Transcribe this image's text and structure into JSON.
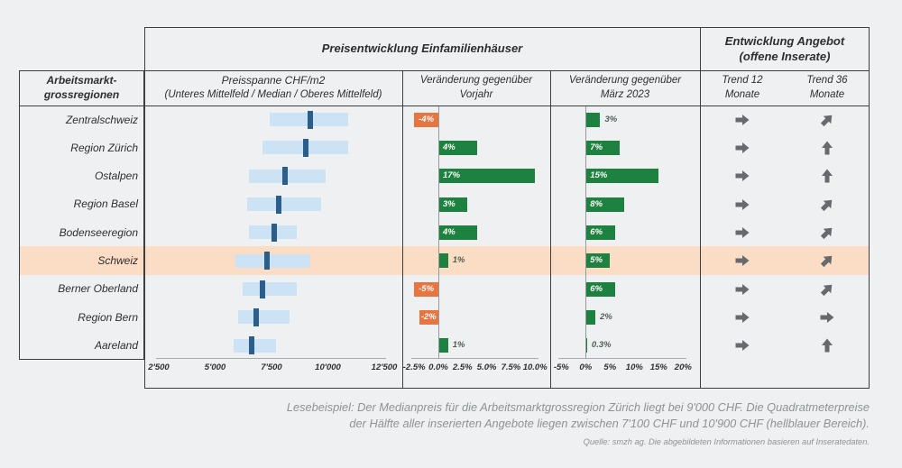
{
  "header": {
    "group_price": "Preisentwicklung Einfamilienhäuser",
    "group_offer_line1": "Entwicklung Angebot",
    "group_offer_line2": "(offene Inserate)",
    "row_header_line1": "Arbeitsmarkt-",
    "row_header_line2": "grossregionen",
    "col_price_line1": "Preisspanne CHF/m2",
    "col_price_line2": "(Unteres Mittelfeld / Median / Oberes Mittelfeld)",
    "col_yoy_line1": "Veränderung gegenüber",
    "col_yoy_line2": "Vorjahr",
    "col_mar_line1": "Veränderung gegenüber",
    "col_mar_line2": "März 2023",
    "col_trend12_line1": "Trend 12",
    "col_trend12_line2": "Monate",
    "col_trend36_line1": "Trend 36",
    "col_trend36_line2": "Monate"
  },
  "chart_data": {
    "type": "table",
    "description": "Price ranges CHF/m2 (range bar with median tick), % change bars vs prior year and vs March 2023, and supply trend arrows per labour-market region",
    "highlight_row": "Schweiz",
    "price_axis": {
      "range": [
        2500,
        12500
      ],
      "tick_values": [
        2500,
        5000,
        7500,
        10000,
        12500
      ],
      "tick_labels": [
        "2'500",
        "5'000",
        "7'500",
        "10'000",
        "12'500"
      ]
    },
    "yoy_axis": {
      "range": [
        -2.5,
        10
      ],
      "tick_values": [
        -2.5,
        0,
        2.5,
        5,
        7.5,
        10
      ],
      "tick_labels": [
        "-2.5%",
        "0.0%",
        "2.5%",
        "5.0%",
        "7.5%",
        "10.0%"
      ]
    },
    "mar_axis": {
      "range": [
        -5,
        20
      ],
      "tick_values": [
        -5,
        0,
        5,
        10,
        15,
        20
      ],
      "tick_labels": [
        "-5%",
        "0%",
        "5%",
        "10%",
        "15%",
        "20%"
      ]
    },
    "rows": [
      {
        "region": "Zentralschweiz",
        "price_low": 7400,
        "price_median": 9200,
        "price_high": 10900,
        "yoy": -4,
        "yoy_label": "-4%",
        "mar": 3,
        "mar_label": "3%",
        "trend12": "right",
        "trend36": "up-right",
        "highlight": false
      },
      {
        "region": "Region Zürich",
        "price_low": 7100,
        "price_median": 9000,
        "price_high": 10900,
        "yoy": 4,
        "yoy_label": "4%",
        "mar": 7,
        "mar_label": "7%",
        "trend12": "right",
        "trend36": "up",
        "highlight": false
      },
      {
        "region": "Ostalpen",
        "price_low": 6500,
        "price_median": 8100,
        "price_high": 9900,
        "yoy": 17,
        "yoy_label": "17%",
        "mar": 15,
        "mar_label": "15%",
        "trend12": "right",
        "trend36": "up",
        "highlight": false
      },
      {
        "region": "Region Basel",
        "price_low": 6400,
        "price_median": 7800,
        "price_high": 9700,
        "yoy": 3,
        "yoy_label": "3%",
        "mar": 8,
        "mar_label": "8%",
        "trend12": "right",
        "trend36": "up-right",
        "highlight": false
      },
      {
        "region": "Bodenseeregion",
        "price_low": 6500,
        "price_median": 7600,
        "price_high": 8600,
        "yoy": 4,
        "yoy_label": "4%",
        "mar": 6,
        "mar_label": "6%",
        "trend12": "right",
        "trend36": "up-right",
        "highlight": false
      },
      {
        "region": "Schweiz",
        "price_low": 5900,
        "price_median": 7300,
        "price_high": 9200,
        "yoy": 1,
        "yoy_label": "1%",
        "mar": 5,
        "mar_label": "5%",
        "trend12": "right",
        "trend36": "up-right",
        "highlight": true
      },
      {
        "region": "Berner Oberland",
        "price_low": 6200,
        "price_median": 7100,
        "price_high": 8600,
        "yoy": -5,
        "yoy_label": "-5%",
        "mar": 6,
        "mar_label": "6%",
        "trend12": "right",
        "trend36": "up-right",
        "highlight": false
      },
      {
        "region": "Region Bern",
        "price_low": 6000,
        "price_median": 6800,
        "price_high": 8300,
        "yoy": -2,
        "yoy_label": "-2%",
        "mar": 2,
        "mar_label": "2%",
        "trend12": "right",
        "trend36": "right",
        "highlight": false
      },
      {
        "region": "Aareland",
        "price_low": 5800,
        "price_median": 6600,
        "price_high": 7700,
        "yoy": 1,
        "yoy_label": "1%",
        "mar": 0.3,
        "mar_label": "0.3%",
        "trend12": "right",
        "trend36": "up",
        "highlight": false
      }
    ]
  },
  "colors": {
    "background": "#eef0f1",
    "highlight_band": "#fbdcc5",
    "range_bar": "#cbe3f5",
    "median_bar": "#2b5e8a",
    "positive_bar": "#1d8140",
    "negative_bar": "#e8743f",
    "arrow": "#67696c",
    "outside_label": "#4e5f55",
    "border": "#3d3e40"
  },
  "footer": {
    "lesebeispiel_line1": "Lesebeispiel: Der Medianpreis für die Arbeitsmarktgrossregion Zürich liegt bei 9'000 CHF. Die Quadratmeterpreise",
    "lesebeispiel_line2": "der Hälfte aller inserierten Angebote liegen zwischen 7'100 CHF und 10'900 CHF (hellblauer Bereich).",
    "quelle": "Quelle: smzh ag. Die abgebildeten Informationen basieren auf Inseratedaten."
  }
}
